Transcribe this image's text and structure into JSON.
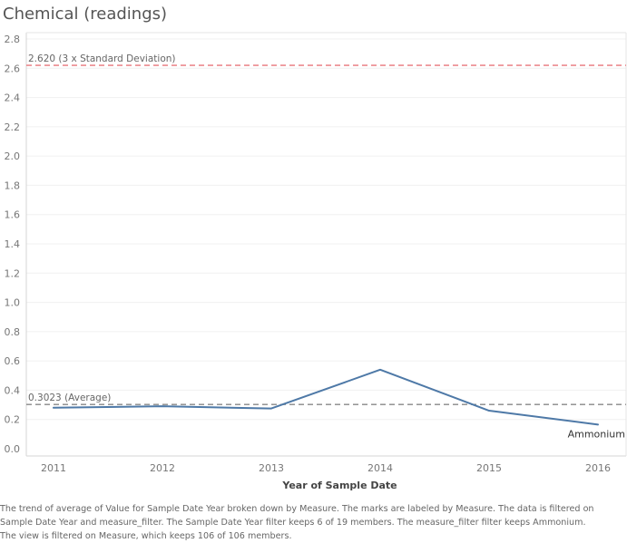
{
  "title": "Chemical (readings)",
  "chart_data": {
    "type": "line",
    "x": [
      2011,
      2012,
      2013,
      2014,
      2015,
      2016
    ],
    "series": [
      {
        "name": "Ammonium",
        "values": [
          0.28,
          0.29,
          0.275,
          0.54,
          0.26,
          0.165
        ],
        "color": "#4e79a7"
      }
    ],
    "xlabel": "Year of Sample Date",
    "ylabel": "",
    "ylim": [
      0,
      2.8
    ],
    "yticks": [
      0.0,
      0.2,
      0.4,
      0.6,
      0.8,
      1.0,
      1.2,
      1.4,
      1.6,
      1.8,
      2.0,
      2.2,
      2.4,
      2.6,
      2.8
    ],
    "ytick_labels": [
      "0.0",
      "0.2",
      "0.4",
      "0.6",
      "0.8",
      "1.0",
      "1.2",
      "1.4",
      "1.6",
      "1.8",
      "2.0",
      "2.2",
      "2.4",
      "2.6",
      "2.8"
    ],
    "xtick_labels": [
      "2011",
      "2012",
      "2013",
      "2014",
      "2015",
      "2016"
    ],
    "reference_lines": [
      {
        "value": 2.62,
        "label": "2.620 (3 x Standard Deviation)",
        "color": "#e8757a"
      },
      {
        "value": 0.3023,
        "label": "0.3023 (Average)",
        "color": "#888888"
      }
    ],
    "grid": true
  },
  "caption_lines": [
    "The trend of average of Value for Sample Date Year broken down by Measure.  The marks are labeled by Measure. The data is filtered on",
    "Sample Date Year and measure_filter. The Sample Date Year filter keeps 6 of 19 members. The measure_filter filter keeps Ammonium.",
    "The view is filtered on Measure, which keeps 106 of 106 members."
  ]
}
